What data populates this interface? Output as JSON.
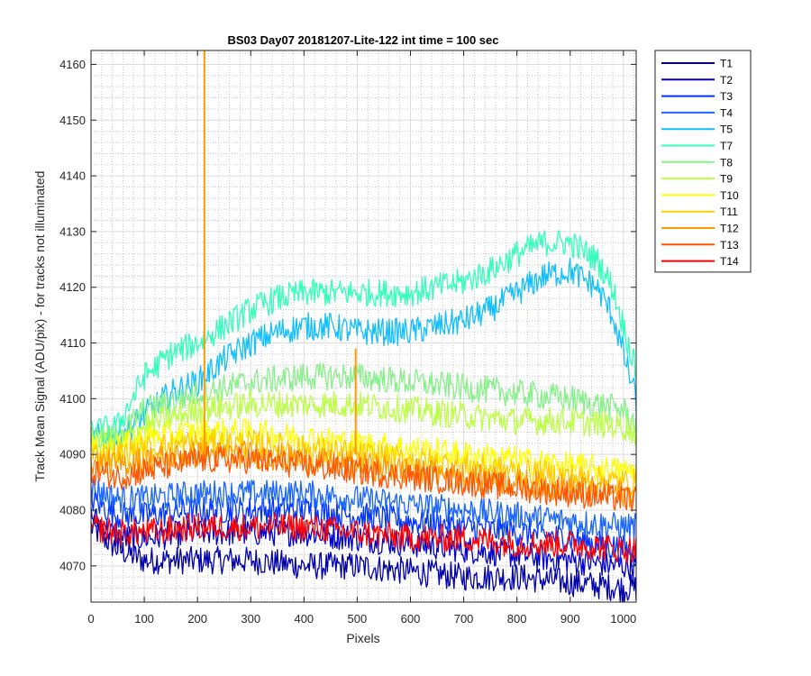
{
  "chart_data": {
    "type": "line",
    "title": "BS03 Day07 20181207-Lite-122 int time = 100 sec",
    "xlabel": "Pixels",
    "ylabel": "Track Mean Signal (ADU/pix) - for tracks not illuminated",
    "xlim": [
      0,
      1024
    ],
    "ylim": [
      4063.5,
      4162.5
    ],
    "xticks": [
      "0",
      "100",
      "200",
      "300",
      "400",
      "500",
      "600",
      "700",
      "800",
      "900",
      "1000"
    ],
    "yticks": [
      "4070",
      "4080",
      "4090",
      "4100",
      "4110",
      "4120",
      "4130",
      "4140",
      "4150",
      "4160"
    ],
    "grid": true,
    "minor_grid": true,
    "legend_position": "outside-right",
    "series": [
      {
        "name": "T1",
        "color": "#0000AA",
        "x": [
          0,
          50,
          100,
          200,
          300,
          400,
          500,
          600,
          700,
          800,
          900,
          1000,
          1024
        ],
        "y": [
          4077,
          4073,
          4071,
          4071,
          4071,
          4070,
          4070,
          4069,
          4068,
          4068,
          4067,
          4066,
          4066
        ]
      },
      {
        "name": "T2",
        "color": "#0000CD",
        "x": [
          0,
          50,
          100,
          200,
          300,
          400,
          500,
          600,
          700,
          800,
          900,
          1000,
          1024
        ],
        "y": [
          4079,
          4075,
          4075,
          4076,
          4076,
          4076,
          4075,
          4074,
          4073,
          4072,
          4071,
          4070,
          4070
        ]
      },
      {
        "name": "T3",
        "color": "#0033FF",
        "x": [
          0,
          50,
          100,
          200,
          300,
          400,
          500,
          600,
          700,
          800,
          900,
          1000,
          1024
        ],
        "y": [
          4082,
          4079,
          4079,
          4080,
          4080,
          4080,
          4079,
          4078,
          4077,
          4076,
          4075,
          4073,
          4072
        ]
      },
      {
        "name": "T4",
        "color": "#1A66FF",
        "x": [
          0,
          50,
          100,
          200,
          300,
          400,
          500,
          600,
          700,
          800,
          900,
          1000,
          1024
        ],
        "y": [
          4084,
          4082,
          4082,
          4083,
          4083,
          4083,
          4082,
          4081,
          4080,
          4079,
          4078,
          4077,
          4077
        ]
      },
      {
        "name": "T5",
        "color": "#11BFFF",
        "x": [
          0,
          50,
          100,
          150,
          200,
          250,
          300,
          350,
          400,
          450,
          500,
          550,
          600,
          650,
          700,
          750,
          800,
          850,
          900,
          950,
          980,
          1000,
          1024
        ],
        "y": [
          4093,
          4093,
          4097,
          4101,
          4103,
          4107,
          4110,
          4112,
          4113,
          4113,
          4112,
          4112,
          4112,
          4113,
          4114,
          4116,
          4119,
          4122,
          4123,
          4120,
          4115,
          4108,
          4100
        ]
      },
      {
        "name": "T7",
        "color": "#33FFBB",
        "x": [
          0,
          50,
          100,
          150,
          200,
          250,
          300,
          350,
          400,
          450,
          500,
          550,
          600,
          650,
          700,
          750,
          800,
          850,
          900,
          950,
          980,
          1000,
          1024
        ],
        "y": [
          4094,
          4095,
          4104,
          4108,
          4110,
          4113,
          4116,
          4118,
          4119,
          4119,
          4119,
          4119,
          4119,
          4120,
          4121,
          4123,
          4126,
          4128,
          4128,
          4125,
          4120,
          4113,
          4105
        ]
      },
      {
        "name": "T8",
        "color": "#88F08A",
        "x": [
          0,
          50,
          100,
          200,
          300,
          400,
          500,
          600,
          700,
          800,
          900,
          1000,
          1024
        ],
        "y": [
          4093,
          4093,
          4098,
          4101,
          4103,
          4104,
          4104,
          4103,
          4102,
          4101,
          4100,
          4098,
          4095
        ]
      },
      {
        "name": "T9",
        "color": "#BBFF44",
        "x": [
          0,
          50,
          100,
          200,
          300,
          400,
          500,
          600,
          700,
          800,
          900,
          1000,
          1024
        ],
        "y": [
          4092,
          4092,
          4095,
          4098,
          4099,
          4099,
          4099,
          4098,
          4097,
          4096,
          4096,
          4095,
          4094
        ]
      },
      {
        "name": "T10",
        "color": "#FFFF00",
        "x": [
          0,
          50,
          100,
          200,
          300,
          400,
          500,
          600,
          700,
          800,
          900,
          1000,
          1024
        ],
        "y": [
          4091,
          4091,
          4093,
          4094,
          4094,
          4093,
          4092,
          4091,
          4090,
          4089,
          4088,
          4087,
          4087
        ]
      },
      {
        "name": "T11",
        "color": "#FFCC00",
        "x": [
          0,
          50,
          100,
          200,
          300,
          400,
          500,
          600,
          700,
          800,
          900,
          1000,
          1024
        ],
        "y": [
          4090,
          4090,
          4091,
          4092,
          4092,
          4091,
          4090,
          4089,
          4088,
          4087,
          4086,
          4085,
          4085
        ]
      },
      {
        "name": "T12",
        "color": "#FF9900",
        "x": [
          0,
          50,
          100,
          200,
          300,
          400,
          500,
          600,
          700,
          800,
          900,
          1000,
          1024
        ],
        "y": [
          4089,
          4088,
          4089,
          4090,
          4090,
          4089,
          4088,
          4087,
          4086,
          4085,
          4084,
          4083,
          4083
        ]
      },
      {
        "name": "T13",
        "color": "#FF5500",
        "x": [
          0,
          50,
          100,
          200,
          300,
          400,
          500,
          600,
          700,
          800,
          900,
          1000,
          1024
        ],
        "y": [
          4087,
          4086,
          4087,
          4089,
          4089,
          4088,
          4087,
          4086,
          4085,
          4084,
          4083,
          4082,
          4082
        ]
      },
      {
        "name": "T14",
        "color": "#FF0000",
        "x": [
          0,
          50,
          100,
          200,
          300,
          400,
          500,
          600,
          700,
          800,
          900,
          1000,
          1024
        ],
        "y": [
          4077,
          4076,
          4076,
          4077,
          4077,
          4077,
          4076,
          4075,
          4075,
          4074,
          4074,
          4073,
          4073
        ]
      }
    ],
    "spikes": [
      {
        "series": "T12",
        "x": 213,
        "y_from": 4090,
        "y_to": 4163
      },
      {
        "series": "T12",
        "x": 497,
        "y_from": 4090,
        "y_to": 4109
      }
    ]
  }
}
